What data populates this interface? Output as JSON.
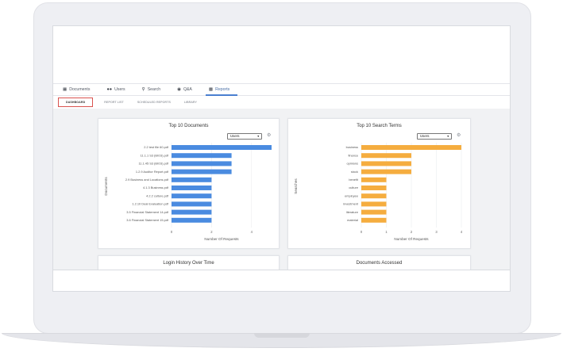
{
  "nav": {
    "tabs": [
      {
        "label": "Documents",
        "icon": "documents-icon"
      },
      {
        "label": "Users",
        "icon": "users-icon"
      },
      {
        "label": "Search",
        "icon": "search-icon"
      },
      {
        "label": "Q&A",
        "icon": "chat-icon"
      },
      {
        "label": "Reports",
        "icon": "chart-icon"
      }
    ],
    "active": "Reports"
  },
  "subtabs": {
    "items": [
      "DASHBOARD",
      "REPORT LIST",
      "SCHEDULED REPORTS",
      "LIBRARY"
    ],
    "active": "DASHBOARD"
  },
  "colors": {
    "blue_bar": "#4a8be0",
    "orange_bar": "#f5ad3f",
    "highlight": "#d9534f"
  },
  "cards": {
    "documents": {
      "title": "Top 10 Documents",
      "filter": "Users"
    },
    "search_terms": {
      "title": "Top 10 Search Terms",
      "filter": "Users"
    },
    "login_history": {
      "title": "Login History Over Time"
    },
    "documents_accessed": {
      "title": "Documents Accessed"
    }
  },
  "chart_data": [
    {
      "type": "bar",
      "orientation": "horizontal",
      "title": "Top 10 Documents",
      "categories": [
        "2.2 test file 60.pdf",
        "11.1.1 S3 (BIO3).pdf",
        "11.1.45 S3 (BIO3).pdf",
        "1.2.9 Auditor Report.pdf",
        "2.9 Business and Locations.pdf",
        "4.1.3 Business.pdf",
        "4.2.2 culture.pdf",
        "1.2.10 Deal Evaluation.pdf",
        "3.5 Financial Statement 14.pdf",
        "3.6 Financial Statement 15.pdf"
      ],
      "values": [
        5,
        3,
        3,
        3,
        2,
        2,
        2,
        2,
        2,
        2
      ],
      "xlabel": "Number Of Requests",
      "ylabel": "Documents",
      "xlim": [
        0,
        5
      ],
      "xticks": [
        "0",
        "2",
        "4"
      ],
      "xtick_values": [
        0,
        2,
        4
      ],
      "color": "#4a8be0"
    },
    {
      "type": "bar",
      "orientation": "horizontal",
      "title": "Top 10 Search Terms",
      "categories": [
        "business",
        "finance",
        "opinions",
        "stock",
        "benefit",
        "culture",
        "employee",
        "investment",
        "literature",
        "material"
      ],
      "values": [
        4,
        2,
        2,
        2,
        1,
        1,
        1,
        1,
        1,
        1
      ],
      "xlabel": "Number Of Requests",
      "ylabel": "Searches",
      "xlim": [
        0,
        4
      ],
      "xticks": [
        "0",
        "1",
        "2",
        "3",
        "4"
      ],
      "xtick_values": [
        0,
        1,
        2,
        3,
        4
      ],
      "color": "#f5ad3f"
    }
  ]
}
